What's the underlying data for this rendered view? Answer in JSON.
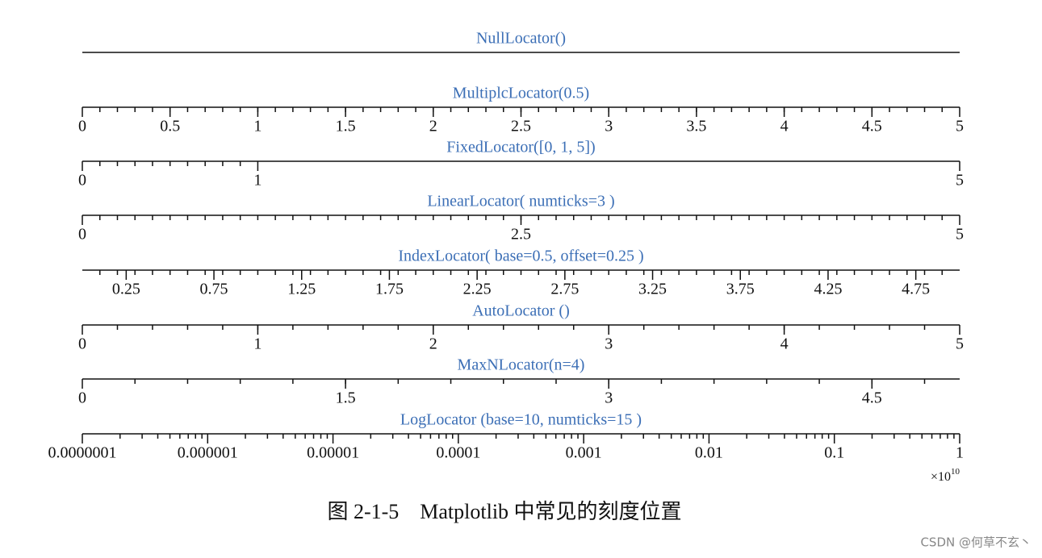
{
  "chart_data": [
    {
      "type": "axis",
      "title": "NullLocator()"
    },
    {
      "type": "axis",
      "title": "MultiplcLocator(0.5)",
      "xlim": [
        0,
        5
      ],
      "xticks": [
        0,
        0.5,
        1,
        1.5,
        2,
        2.5,
        3,
        3.5,
        4,
        4.5,
        5
      ],
      "minor_step": 0.1
    },
    {
      "type": "axis",
      "title": "FixedLocator([0, 1, 5])",
      "xlim": [
        0,
        5
      ],
      "xticks": [
        0,
        1,
        5
      ],
      "minor_xticks": [
        0.1,
        0.2,
        0.3,
        0.4,
        0.5,
        0.6,
        0.7,
        0.8,
        0.9
      ]
    },
    {
      "type": "axis",
      "title": "LinearLocator( numticks=3 )",
      "xlim": [
        0,
        5
      ],
      "xticks": [
        0,
        2.5,
        5
      ],
      "minor_step": 0.1
    },
    {
      "type": "axis",
      "title": "IndexLocator( base=0.5, offset=0.25 )",
      "xlim": [
        0,
        5
      ],
      "xticks": [
        0.25,
        0.75,
        1.25,
        1.75,
        2.25,
        2.75,
        3.25,
        3.75,
        4.25,
        4.75
      ],
      "minor_step": 0.1
    },
    {
      "type": "axis",
      "title": "AutoLocator ()",
      "xlim": [
        0,
        5
      ],
      "xticks": [
        0,
        1,
        2,
        3,
        4,
        5
      ],
      "minor_step": 0.2
    },
    {
      "type": "axis",
      "title": "MaxNLocator(n=4)",
      "xlim": [
        0,
        5
      ],
      "xticks": [
        0,
        1.5,
        3,
        4.5
      ],
      "minor_step": 0.3
    },
    {
      "type": "axis",
      "title": "LogLocator (base=10, numticks=15 )",
      "log": true,
      "xlim": [
        1e-07,
        1
      ],
      "xticks": [
        {
          "value": 1e-07,
          "label": "0.0000001"
        },
        {
          "value": 1e-06,
          "label": "0.000001"
        },
        {
          "value": 1e-05,
          "label": "0.00001"
        },
        {
          "value": 0.0001,
          "label": "0.0001"
        },
        {
          "value": 0.001,
          "label": "0.001"
        },
        {
          "value": 0.01,
          "label": "0.01"
        },
        0.1,
        1
      ],
      "minor_subs": [
        2,
        3,
        4,
        5,
        6,
        7,
        8,
        9
      ],
      "offset_text": "×10",
      "offset_exponent": "10"
    }
  ],
  "caption": "图 2-1-5　Matplotlib 中常见的刻度位置",
  "watermark": "CSDN @何草不玄丶"
}
